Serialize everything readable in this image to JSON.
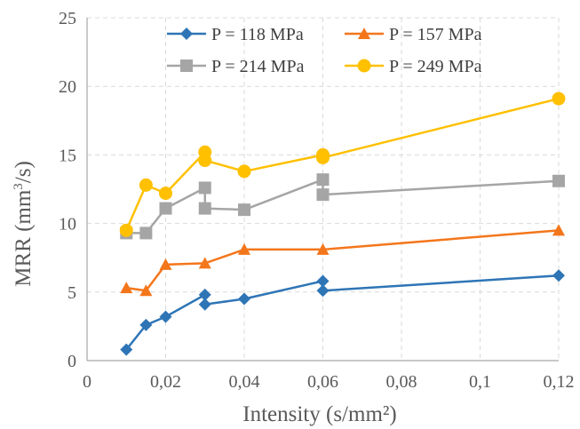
{
  "chart_data": {
    "type": "line",
    "title": "",
    "xlabel": "Intensity (s/mm²)",
    "ylabel_main": "MRR (mm",
    "ylabel_sup": "3",
    "ylabel_tail": "/s)",
    "xlim": [
      0,
      0.12
    ],
    "ylim": [
      0,
      25
    ],
    "xticks": [
      0,
      0.02,
      0.04,
      0.06,
      0.08,
      0.1,
      0.12
    ],
    "xtick_labels": [
      "0",
      "0,02",
      "0,04",
      "0,06",
      "0,08",
      "0,1",
      "0,12"
    ],
    "yticks": [
      0,
      5,
      10,
      15,
      20,
      25
    ],
    "ytick_labels": [
      "0",
      "5",
      "10",
      "15",
      "20",
      "25"
    ],
    "grid": true,
    "legend_position": "top",
    "series": [
      {
        "name": "P = 118 MPa",
        "color": "#2E75B6",
        "marker": "diamond",
        "x": [
          0.01,
          0.015,
          0.02,
          0.03,
          0.03,
          0.04,
          0.06,
          0.06,
          0.12
        ],
        "y": [
          0.8,
          2.6,
          3.2,
          4.8,
          4.1,
          4.5,
          5.8,
          5.1,
          6.2
        ]
      },
      {
        "name": "P = 157 MPa",
        "color": "#F4761B",
        "marker": "triangle",
        "x": [
          0.01,
          0.015,
          0.02,
          0.03,
          0.04,
          0.06,
          0.12
        ],
        "y": [
          5.3,
          5.1,
          7.0,
          7.1,
          8.1,
          8.1,
          9.5
        ]
      },
      {
        "name": "P = 214 MPa",
        "color": "#A5A5A5",
        "marker": "square",
        "x": [
          0.01,
          0.015,
          0.02,
          0.03,
          0.03,
          0.04,
          0.06,
          0.06,
          0.12
        ],
        "y": [
          9.3,
          9.3,
          11.1,
          12.6,
          11.1,
          11.0,
          13.2,
          12.1,
          13.1
        ]
      },
      {
        "name": "P = 249 MPa",
        "color": "#FFC000",
        "marker": "circle",
        "x": [
          0.01,
          0.015,
          0.02,
          0.03,
          0.03,
          0.04,
          0.06,
          0.06,
          0.12
        ],
        "y": [
          9.5,
          12.8,
          12.2,
          15.2,
          14.6,
          13.8,
          15.0,
          14.8,
          19.1
        ]
      }
    ]
  }
}
